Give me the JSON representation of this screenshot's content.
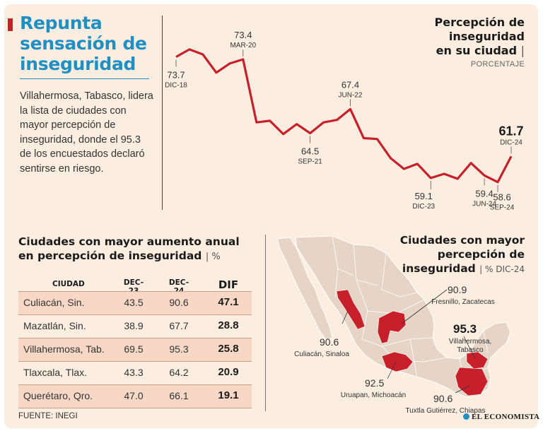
{
  "headline": "Repunta sensación de inseguridad",
  "intro": "Villahermosa, Tabasco, lidera la lista de ciudades con mayor percepción de inseguridad, donde el 95.3 de los encuestados declaró sentirse en riesgo.",
  "chart": {
    "title_line1": "Percepción de",
    "title_line2": "inseguridad",
    "title_line3": "en su ciudad",
    "title_bar": "|",
    "unit": "PORCENTAJE"
  },
  "chart_data": {
    "type": "line",
    "title": "Percepción de inseguridad en su ciudad",
    "ylabel": "Porcentaje",
    "line_color": "#c8202b",
    "values": [
      73.7,
      74.6,
      74.0,
      71.8,
      72.9,
      73.4,
      65.8,
      66.0,
      64.4,
      65.6,
      64.5,
      65.8,
      66.1,
      67.4,
      63.9,
      63.8,
      61.5,
      60.2,
      60.8,
      59.1,
      59.6,
      59.0,
      60.9,
      59.4,
      58.6,
      61.7
    ],
    "ylim": [
      55,
      78
    ],
    "labeled_points": [
      {
        "index": 0,
        "value": "73.7",
        "label": "DIC-18",
        "pos": "below"
      },
      {
        "index": 5,
        "value": "73.4",
        "label": "MAR-20",
        "pos": "above"
      },
      {
        "index": 10,
        "value": "64.5",
        "label": "SEP-21",
        "pos": "below"
      },
      {
        "index": 13,
        "value": "67.4",
        "label": "JUN-22",
        "pos": "above"
      },
      {
        "index": 19,
        "value": "59.1",
        "label": "DIC-23",
        "pos": "below-left"
      },
      {
        "index": 23,
        "value": "59.4",
        "label": "JUN-24",
        "pos": "below"
      },
      {
        "index": 24,
        "value": "58.6",
        "label": "SEP-24",
        "pos": "below-right"
      },
      {
        "index": 25,
        "value": "61.7",
        "label": "DIC-24",
        "pos": "above-big"
      }
    ]
  },
  "table": {
    "title_line1": "Ciudades con mayor aumento anual",
    "title_line2": "en percepción de inseguridad",
    "title_unit": "| %",
    "headers": [
      "CIUDAD",
      "DEC-23",
      "DEC-24",
      "DIF"
    ],
    "rows": [
      {
        "city": "Culiacán, Sin.",
        "dec23": "43.5",
        "dec24": "90.6",
        "dif": "47.1"
      },
      {
        "city": "Mazatlán, Sin.",
        "dec23": "38.9",
        "dec24": "67.7",
        "dif": "28.8"
      },
      {
        "city": "Villahermosa, Tab.",
        "dec23": "69.5",
        "dec24": "95.3",
        "dif": "25.8"
      },
      {
        "city": "Tlaxcala, Tlax.",
        "dec23": "43.3",
        "dec24": "64.2",
        "dif": "20.9"
      },
      {
        "city": "Querétaro, Qro.",
        "dec23": "47.0",
        "dec24": "66.1",
        "dif": "19.1"
      }
    ]
  },
  "map": {
    "title_line1": "Ciudades con mayor",
    "title_line2": "percepción de",
    "title_line3": "inseguridad",
    "title_unit": "| % DIC-24",
    "cities": [
      {
        "value": "90.9",
        "name": "Fresnillo, Zacatecas"
      },
      {
        "value": "90.6",
        "name": "Culiacán, Sinaloa"
      },
      {
        "value": "95.3",
        "name_line1": "Villahermosa,",
        "name_line2": "Tabasco"
      },
      {
        "value": "92.5",
        "name": "Uruapan, Michoacán"
      },
      {
        "value": "90.6",
        "name": "Tuxtla Gutiérrez, Chiapas"
      }
    ]
  },
  "source": "FUENTE: INEGI",
  "logo": "EL ECONOMISTA"
}
